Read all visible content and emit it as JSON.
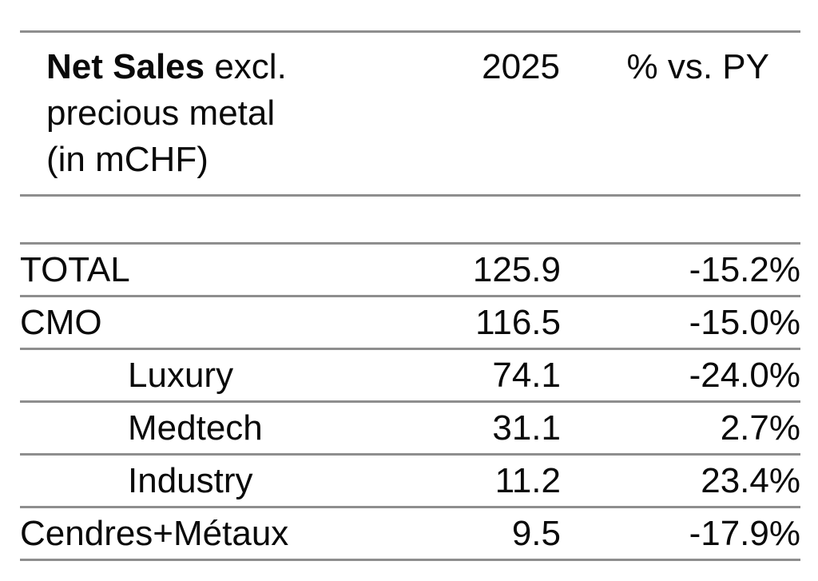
{
  "table": {
    "header": {
      "label_line1_bold": "Net Sales",
      "label_line1_rest": " excl.",
      "label_line2": "precious metal",
      "label_line3": "(in mCHF)",
      "col_year": "2025",
      "col_pct": "% vs. PY"
    },
    "rows": [
      {
        "label": "TOTAL",
        "value": "125.9",
        "pct": "-15.2%",
        "indent": false
      },
      {
        "label": "CMO",
        "value": "116.5",
        "pct": "-15.0%",
        "indent": false
      },
      {
        "label": "Luxury",
        "value": "74.1",
        "pct": "-24.0%",
        "indent": true
      },
      {
        "label": "Medtech",
        "value": "31.1",
        "pct": "2.7%",
        "indent": true
      },
      {
        "label": "Industry",
        "value": "11.2",
        "pct": "23.4%",
        "indent": true
      },
      {
        "label": "Cendres+Métaux",
        "value": "9.5",
        "pct": "-17.9%",
        "indent": false
      }
    ],
    "colors": {
      "rule": "#8e8e8e",
      "text": "#0a0a0a",
      "background": "#ffffff"
    }
  },
  "chart_data": {
    "type": "table",
    "title": "Net Sales excl. precious metal (in mCHF)",
    "columns": [
      "Net Sales excl. precious metal (in mCHF)",
      "2025",
      "% vs. PY"
    ],
    "rows": [
      [
        "TOTAL",
        125.9,
        "-15.2%"
      ],
      [
        "CMO",
        116.5,
        "-15.0%"
      ],
      [
        "Luxury",
        74.1,
        "-24.0%"
      ],
      [
        "Medtech",
        31.1,
        "2.7%"
      ],
      [
        "Industry",
        11.2,
        "23.4%"
      ],
      [
        "Cendres+Métaux",
        9.5,
        "-17.9%"
      ]
    ],
    "notes": "Luxury, Medtech and Industry are indented sub-rows of CMO"
  }
}
